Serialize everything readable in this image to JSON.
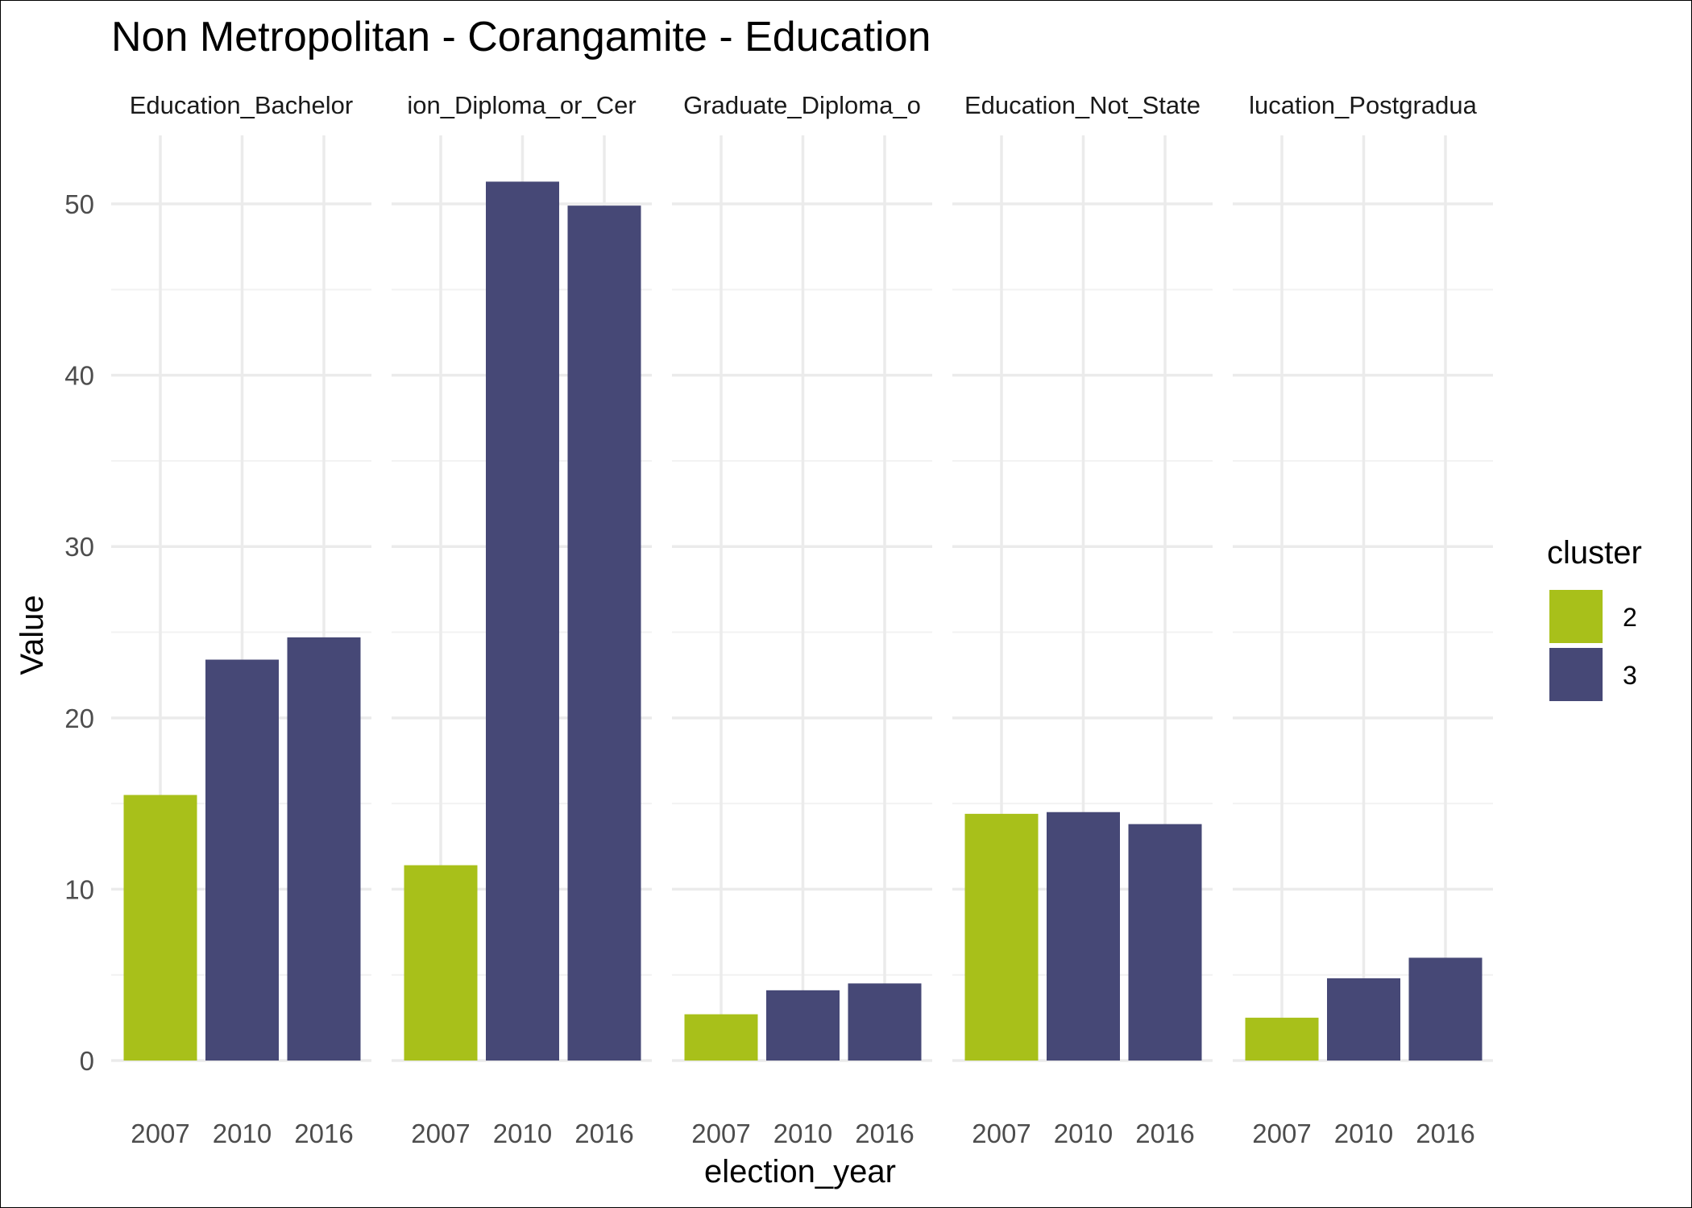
{
  "chart_data": {
    "type": "bar",
    "title": "Non Metropolitan - Corangamite - Education",
    "xlabel": "election_year",
    "ylabel": "Value",
    "ylim": [
      0,
      54
    ],
    "y_ticks": [
      0,
      10,
      20,
      30,
      40,
      50
    ],
    "categories": [
      "2007",
      "2010",
      "2016"
    ],
    "legend": {
      "title": "cluster",
      "position": "right",
      "entries": [
        {
          "label": "2",
          "color": "#a8c01a"
        },
        {
          "label": "3",
          "color": "#464876"
        }
      ]
    },
    "panels": [
      {
        "name": "Education_Bachelor",
        "values": [
          15.5,
          23.4,
          24.7
        ],
        "clusters": [
          "2",
          "3",
          "3"
        ]
      },
      {
        "name": "ion_Diploma_or_Cer",
        "values": [
          11.4,
          51.3,
          49.9
        ],
        "clusters": [
          "2",
          "3",
          "3"
        ]
      },
      {
        "name": "Graduate_Diploma_o",
        "values": [
          2.7,
          4.1,
          4.5
        ],
        "clusters": [
          "2",
          "3",
          "3"
        ]
      },
      {
        "name": "Education_Not_State",
        "values": [
          14.4,
          14.5,
          13.8
        ],
        "clusters": [
          "2",
          "3",
          "3"
        ]
      },
      {
        "name": "lucation_Postgradua",
        "values": [
          2.5,
          4.8,
          6.0
        ],
        "clusters": [
          "2",
          "3",
          "3"
        ]
      }
    ],
    "grid": true
  }
}
